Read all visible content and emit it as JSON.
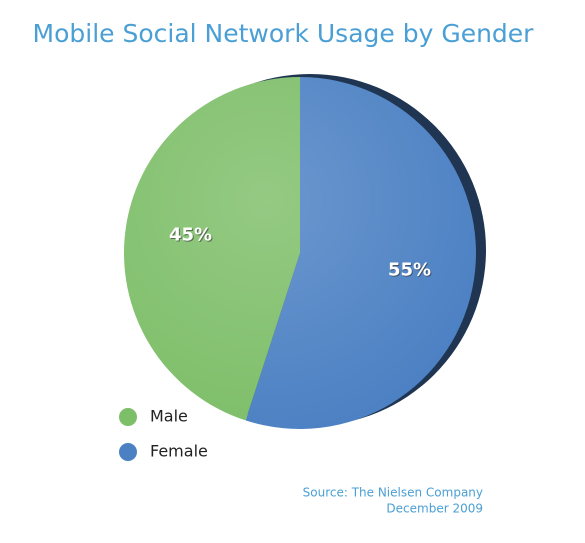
{
  "chart_data": {
    "type": "pie",
    "title": "Mobile Social Network Usage by Gender",
    "categories": [
      "Male",
      "Female"
    ],
    "values": [
      45,
      55
    ],
    "value_labels": [
      "45%",
      "55%"
    ],
    "colors": [
      "#7dbe68",
      "#4b80c3"
    ],
    "source": [
      "Source: The Nielsen Company",
      "December 2009"
    ]
  }
}
